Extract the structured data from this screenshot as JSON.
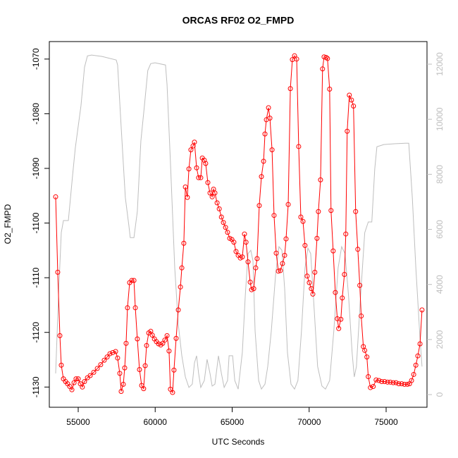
{
  "chart_data": {
    "type": "line",
    "title": "ORCAS RF02 O2_FMPD",
    "xlabel": "UTC Seconds",
    "ylabel": "O2_FMPD",
    "xlim": [
      53124,
      77654
    ],
    "ylim": [
      -1133.7,
      -1066.8
    ],
    "y2lim": [
      -460,
      12820
    ],
    "xticks": [
      55000,
      60000,
      65000,
      70000,
      75000
    ],
    "yticks": [
      -1130,
      -1120,
      -1110,
      -1100,
      -1090,
      -1080,
      -1070
    ],
    "y2ticks": [
      0,
      2000,
      4000,
      6000,
      8000,
      10000,
      12000
    ],
    "series": [
      {
        "color": "#ff0000",
        "axis": "y",
        "markers": true,
        "x": [
          53535,
          53670,
          53810,
          53900,
          54040,
          54180,
          54310,
          54450,
          54590,
          54730,
          54860,
          55000,
          55140,
          55270,
          55410,
          55600,
          55780,
          56010,
          56240,
          56460,
          56690,
          56880,
          57060,
          57240,
          57430,
          57560,
          57700,
          57790,
          57930,
          58020,
          58110,
          58200,
          58340,
          58480,
          58620,
          58710,
          58840,
          58980,
          59120,
          59250,
          59350,
          59440,
          59580,
          59710,
          59810,
          59950,
          60080,
          60220,
          60360,
          60490,
          60630,
          60770,
          60900,
          60990,
          61130,
          61220,
          61360,
          61500,
          61640,
          61730,
          61860,
          61960,
          62090,
          62190,
          62320,
          62460,
          62550,
          62690,
          62820,
          62960,
          63060,
          63190,
          63280,
          63420,
          63560,
          63700,
          63790,
          63880,
          64020,
          64160,
          64300,
          64430,
          64570,
          64700,
          64840,
          64980,
          65110,
          65250,
          65390,
          65530,
          65660,
          65800,
          65900,
          66030,
          66170,
          66260,
          66400,
          66530,
          66620,
          66760,
          66900,
          67040,
          67130,
          67220,
          67360,
          67450,
          67590,
          67720,
          67860,
          68000,
          68130,
          68270,
          68410,
          68500,
          68640,
          68780,
          68910,
          69050,
          69190,
          69320,
          69460,
          69600,
          69730,
          69870,
          70010,
          70140,
          70240,
          70370,
          70510,
          70600,
          70740,
          70870,
          70970,
          71100,
          71190,
          71330,
          71420,
          71560,
          71700,
          71830,
          71920,
          72060,
          72150,
          72290,
          72380,
          72470,
          72610,
          72750,
          72880,
          73020,
          73160,
          73290,
          73380,
          73520,
          73610,
          73750,
          73840,
          73980,
          74160,
          74350,
          74530,
          74710,
          74900,
          75090,
          75270,
          75460,
          75640,
          75820,
          76010,
          76190,
          76380,
          76520,
          76650,
          76790,
          76930,
          77060,
          77200,
          77330
        ],
        "values": [
          -1095.2,
          -1109.0,
          -1120.6,
          -1126.0,
          -1128.5,
          -1129.0,
          -1129.4,
          -1129.9,
          -1130.5,
          -1129.2,
          -1128.5,
          -1128.5,
          -1129.4,
          -1130.0,
          -1129.0,
          -1128.3,
          -1127.9,
          -1127.3,
          -1126.6,
          -1125.9,
          -1125.1,
          -1124.5,
          -1123.9,
          -1123.7,
          -1123.5,
          -1124.7,
          -1127.5,
          -1130.8,
          -1129.5,
          -1126.5,
          -1122.0,
          -1115.5,
          -1110.9,
          -1110.5,
          -1110.5,
          -1115.5,
          -1121.2,
          -1126.8,
          -1129.7,
          -1130.3,
          -1126.1,
          -1122.4,
          -1120.1,
          -1119.8,
          -1120.5,
          -1121.2,
          -1121.7,
          -1122.1,
          -1122.3,
          -1122.0,
          -1121.4,
          -1120.6,
          -1123.4,
          -1130.4,
          -1131.0,
          -1126.9,
          -1121.1,
          -1115.9,
          -1111.7,
          -1108.2,
          -1103.7,
          -1093.4,
          -1095.3,
          -1090.1,
          -1086.6,
          -1085.9,
          -1085.2,
          -1089.9,
          -1091.7,
          -1091.7,
          -1088.1,
          -1088.5,
          -1089.1,
          -1092.6,
          -1094.5,
          -1095.2,
          -1093.8,
          -1094.5,
          -1096.3,
          -1097.4,
          -1098.9,
          -1099.9,
          -1100.8,
          -1101.7,
          -1102.8,
          -1103.0,
          -1103.5,
          -1105.2,
          -1105.9,
          -1106.4,
          -1106.2,
          -1102.0,
          -1103.5,
          -1107.1,
          -1110.8,
          -1112.2,
          -1112.0,
          -1108.2,
          -1106.5,
          -1096.8,
          -1091.5,
          -1088.7,
          -1083.7,
          -1081.1,
          -1078.9,
          -1080.8,
          -1086.6,
          -1098.6,
          -1105.5,
          -1108.8,
          -1108.7,
          -1107.4,
          -1105.9,
          -1102.9,
          -1096.6,
          -1075.4,
          -1070.1,
          -1069.4,
          -1070.0,
          -1086.0,
          -1098.9,
          -1099.7,
          -1104.1,
          -1109.7,
          -1110.9,
          -1112.0,
          -1113.0,
          -1109.0,
          -1102.8,
          -1097.9,
          -1092.1,
          -1071.8,
          -1069.6,
          -1069.7,
          -1069.9,
          -1075.5,
          -1097.7,
          -1105.1,
          -1112.7,
          -1117.5,
          -1119.3,
          -1117.6,
          -1113.7,
          -1109.4,
          -1102.0,
          -1083.2,
          -1076.6,
          -1077.5,
          -1078.6,
          -1097.9,
          -1104.8,
          -1111.4,
          -1117.0,
          -1122.6,
          -1123.3,
          -1124.5,
          -1128.1,
          -1130.1,
          -1129.9,
          -1128.7,
          -1128.8,
          -1129.0,
          -1129.0,
          -1129.1,
          -1129.1,
          -1129.2,
          -1129.2,
          -1129.4,
          -1129.4,
          -1129.5,
          -1129.5,
          -1129.4,
          -1128.8,
          -1127.7,
          -1126.0,
          -1124.3,
          -1122.1,
          -1115.9
        ]
      },
      {
        "color": "#bebebe",
        "axis": "y2",
        "markers": false,
        "x": [
          53535,
          53720,
          53900,
          54040,
          54360,
          54630,
          54810,
          55180,
          55410,
          55600,
          55870,
          56550,
          57470,
          57560,
          57790,
          58060,
          58290,
          58380,
          58620,
          58840,
          59070,
          59300,
          59520,
          59710,
          59990,
          60670,
          60770,
          60990,
          61270,
          61500,
          61730,
          61960,
          62190,
          62410,
          62550,
          62690,
          62820,
          62960,
          63190,
          63370,
          63560,
          63700,
          63880,
          64110,
          64300,
          64480,
          64700,
          64800,
          65030,
          65170,
          65390,
          65660,
          65850,
          66030,
          66210,
          66350,
          66490,
          66720,
          66900,
          67130,
          67310,
          67540,
          67820,
          68040,
          68230,
          68410,
          68590,
          68820,
          69050,
          69270,
          69500,
          69730,
          69920,
          70100,
          70330,
          70550,
          70830,
          71060,
          71330,
          71600,
          71880,
          72110,
          72330,
          72560,
          72790,
          72930,
          73070,
          73340,
          73610,
          73840,
          74070,
          74260,
          74400,
          74850,
          75550,
          76240,
          76470,
          76700,
          76930,
          77200,
          77330
        ],
        "values": [
          770,
          3580,
          5880,
          6320,
          6320,
          7930,
          8950,
          10490,
          11890,
          12300,
          12330,
          12280,
          12150,
          11970,
          9720,
          7160,
          6140,
          5700,
          5700,
          6650,
          9210,
          10490,
          11770,
          12020,
          12050,
          11970,
          11260,
          8440,
          4600,
          2560,
          1410,
          640,
          260,
          380,
          1150,
          1410,
          770,
          260,
          510,
          1280,
          770,
          310,
          380,
          1410,
          770,
          260,
          510,
          1410,
          1410,
          510,
          200,
          1530,
          3580,
          5120,
          5240,
          4860,
          2300,
          510,
          200,
          380,
          1020,
          2300,
          4350,
          5370,
          5240,
          3840,
          1530,
          380,
          200,
          510,
          2300,
          4600,
          5320,
          5120,
          3070,
          1020,
          310,
          200,
          510,
          2300,
          4600,
          5370,
          5120,
          3580,
          1530,
          640,
          1020,
          3580,
          5880,
          6270,
          6270,
          8190,
          9000,
          9080,
          9110,
          9130,
          9130,
          7160,
          4600,
          2050,
          1020
        ]
      }
    ]
  }
}
